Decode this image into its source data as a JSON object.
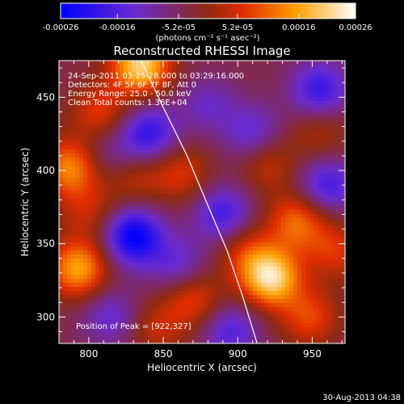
{
  "chart_data": {
    "type": "heatmap",
    "title": "Reconstructed RHESSI Image",
    "xlabel": "Heliocentric X (arcsec)",
    "ylabel": "Heliocentric Y (arcsec)",
    "xlim": [
      780,
      972
    ],
    "ylim": [
      282,
      475
    ],
    "xticks": [
      800,
      850,
      900,
      950
    ],
    "yticks": [
      300,
      350,
      400,
      450
    ],
    "colorbar": {
      "ticks": [
        "-0.00026",
        "-0.00016",
        "-5.2e-05",
        "5.2e-05",
        "0.00016",
        "0.00026"
      ],
      "tick_values": [
        -0.00026,
        -0.00016,
        -5.2e-05,
        5.2e-05,
        0.00016,
        0.00026
      ],
      "range": [
        -0.00026,
        0.00026
      ],
      "unit_label": "(photons cm⁻² s⁻¹ asec⁻²)",
      "colormap": "blue-purple-red-yellow-white"
    },
    "annotations": [
      "24-Sep-2011 03:25:28.000 to 03:29:16.000",
      "Detectors: 4F 5F 6F 7F 8F, Att 0",
      "Energy Range: 25.0 - 50.0 keV",
      "Clean     Total counts: 1.36E+04"
    ],
    "peak_label": "Position of Peak = [922,327]",
    "peak": [
      922,
      327
    ],
    "limb": [
      [
        835,
        475
      ],
      [
        850,
        443
      ],
      [
        866,
        410
      ],
      [
        880,
        376
      ],
      [
        893,
        345
      ],
      [
        903,
        315
      ],
      [
        913,
        282
      ]
    ],
    "features": [
      {
        "x": 922,
        "y": 327,
        "v": 0.00026
      },
      {
        "x": 835,
        "y": 472,
        "v": 0.00025
      },
      {
        "x": 793,
        "y": 333,
        "v": 0.0002
      },
      {
        "x": 940,
        "y": 365,
        "v": 0.00015
      },
      {
        "x": 788,
        "y": 402,
        "v": 0.00018
      },
      {
        "x": 948,
        "y": 300,
        "v": 0.00012
      },
      {
        "x": 870,
        "y": 312,
        "v": 0.00012
      },
      {
        "x": 808,
        "y": 440,
        "v": 0.00011
      },
      {
        "x": 862,
        "y": 398,
        "v": 0.0001
      },
      {
        "x": 920,
        "y": 405,
        "v": 9e-05
      },
      {
        "x": 800,
        "y": 372,
        "v": 8e-05
      },
      {
        "x": 955,
        "y": 425,
        "v": 7e-05
      },
      {
        "x": 905,
        "y": 345,
        "v": 9e-05
      },
      {
        "x": 830,
        "y": 395,
        "v": 8e-05
      },
      {
        "x": 965,
        "y": 345,
        "v": 0.0001
      },
      {
        "x": 845,
        "y": 292,
        "v": 8e-05
      },
      {
        "x": 880,
        "y": 445,
        "v": -8e-05
      },
      {
        "x": 830,
        "y": 355,
        "v": -0.00022
      },
      {
        "x": 840,
        "y": 425,
        "v": -0.00016
      },
      {
        "x": 890,
        "y": 370,
        "v": -0.00014
      },
      {
        "x": 955,
        "y": 455,
        "v": -0.00015
      },
      {
        "x": 960,
        "y": 390,
        "v": -0.00014
      },
      {
        "x": 815,
        "y": 300,
        "v": -0.0001
      },
      {
        "x": 895,
        "y": 290,
        "v": -0.00012
      },
      {
        "x": 860,
        "y": 335,
        "v": -0.0001
      },
      {
        "x": 910,
        "y": 425,
        "v": -0.00011
      },
      {
        "x": 812,
        "y": 410,
        "v": -7e-05
      }
    ]
  },
  "footer": {
    "timestamp": "30-Aug-2013 04:38"
  }
}
